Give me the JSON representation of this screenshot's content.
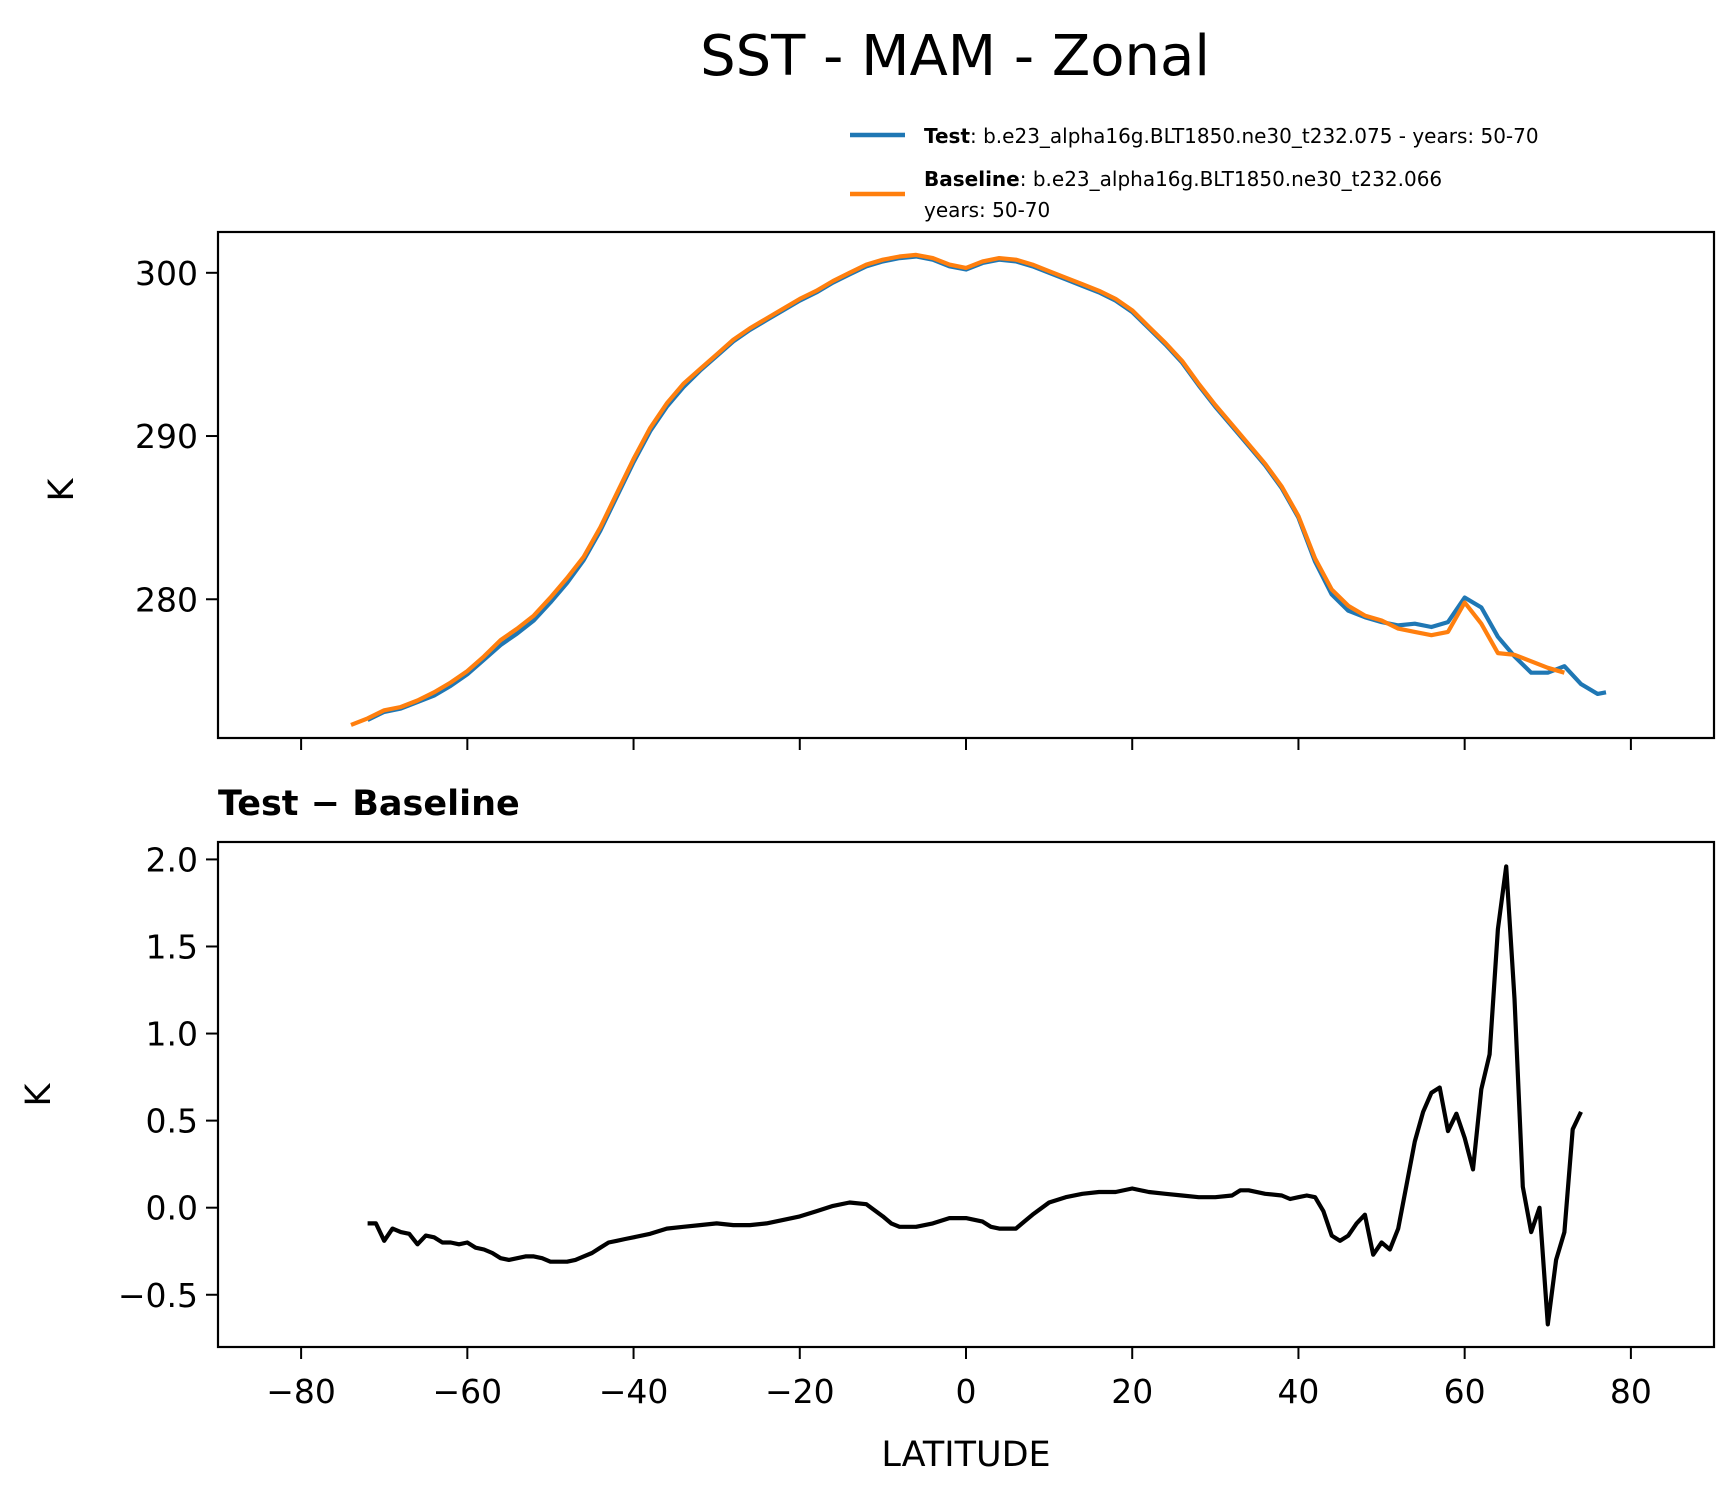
{
  "figure": {
    "title": "SST - MAM - Zonal"
  },
  "chart_data": [
    {
      "type": "line",
      "ylabel": "K",
      "xlabel": "",
      "xlim": [
        -90,
        90
      ],
      "ylim": [
        271.5,
        302.5
      ],
      "xticks": [
        -80,
        -60,
        -40,
        -20,
        0,
        20,
        40,
        60,
        80
      ],
      "yticks": [
        280,
        290,
        300
      ],
      "ytick_labels": [
        "280",
        "290",
        "300"
      ],
      "legend": {
        "placement": "above-right",
        "entries": [
          {
            "series": "test",
            "bold": "Test",
            "text": ": b.e23_alpha16g.BLT1850.ne30_t232.075 - years: 50-70",
            "text2": ""
          },
          {
            "series": "baseline",
            "bold": "Baseline",
            "text": ": b.e23_alpha16g.BLT1850.ne30_t232.066",
            "text2": "years: 50-70"
          }
        ]
      },
      "series": [
        {
          "key": "test",
          "name": "Test",
          "color": "#1f77b4",
          "points": [
            [
              -72,
              272.6
            ],
            [
              -70,
              273.1
            ],
            [
              -68,
              273.3
            ],
            [
              -66,
              273.7
            ],
            [
              -64,
              274.1
            ],
            [
              -62,
              274.7
            ],
            [
              -60,
              275.4
            ],
            [
              -58,
              276.3
            ],
            [
              -56,
              277.2
            ],
            [
              -54,
              277.9
            ],
            [
              -52,
              278.7
            ],
            [
              -50,
              279.8
            ],
            [
              -48,
              281.0
            ],
            [
              -46,
              282.4
            ],
            [
              -44,
              284.2
            ],
            [
              -42,
              286.3
            ],
            [
              -40,
              288.4
            ],
            [
              -38,
              290.3
            ],
            [
              -36,
              291.8
            ],
            [
              -34,
              293.0
            ],
            [
              -32,
              294.0
            ],
            [
              -30,
              294.9
            ],
            [
              -28,
              295.8
            ],
            [
              -26,
              296.5
            ],
            [
              -24,
              297.1
            ],
            [
              -22,
              297.7
            ],
            [
              -20,
              298.3
            ],
            [
              -18,
              298.8
            ],
            [
              -16,
              299.4
            ],
            [
              -14,
              299.9
            ],
            [
              -12,
              300.4
            ],
            [
              -10,
              300.7
            ],
            [
              -8,
              300.9
            ],
            [
              -6,
              301.0
            ],
            [
              -4,
              300.8
            ],
            [
              -2,
              300.4
            ],
            [
              0,
              300.2
            ],
            [
              2,
              300.6
            ],
            [
              4,
              300.8
            ],
            [
              6,
              300.7
            ],
            [
              8,
              300.4
            ],
            [
              10,
              300.0
            ],
            [
              12,
              299.6
            ],
            [
              14,
              299.2
            ],
            [
              16,
              298.8
            ],
            [
              18,
              298.3
            ],
            [
              20,
              297.6
            ],
            [
              22,
              296.6
            ],
            [
              24,
              295.6
            ],
            [
              26,
              294.5
            ],
            [
              28,
              293.1
            ],
            [
              30,
              291.8
            ],
            [
              32,
              290.6
            ],
            [
              34,
              289.4
            ],
            [
              36,
              288.2
            ],
            [
              38,
              286.8
            ],
            [
              40,
              285.0
            ],
            [
              42,
              282.3
            ],
            [
              44,
              280.3
            ],
            [
              46,
              279.3
            ],
            [
              48,
              278.9
            ],
            [
              50,
              278.6
            ],
            [
              52,
              278.4
            ],
            [
              54,
              278.5
            ],
            [
              56,
              278.3
            ],
            [
              58,
              278.6
            ],
            [
              60,
              280.1
            ],
            [
              62,
              279.5
            ],
            [
              64,
              277.7
            ],
            [
              66,
              276.5
            ],
            [
              68,
              275.5
            ],
            [
              70,
              275.5
            ],
            [
              72,
              275.9
            ],
            [
              74,
              274.8
            ],
            [
              76,
              274.2
            ],
            [
              77,
              274.3
            ]
          ]
        },
        {
          "key": "baseline",
          "name": "Baseline",
          "color": "#ff7f0e",
          "points": [
            [
              -74,
              272.3
            ],
            [
              -72,
              272.7
            ],
            [
              -70,
              273.2
            ],
            [
              -68,
              273.4
            ],
            [
              -66,
              273.8
            ],
            [
              -64,
              274.3
            ],
            [
              -62,
              274.9
            ],
            [
              -60,
              275.6
            ],
            [
              -58,
              276.5
            ],
            [
              -56,
              277.5
            ],
            [
              -54,
              278.2
            ],
            [
              -52,
              279.0
            ],
            [
              -50,
              280.1
            ],
            [
              -48,
              281.3
            ],
            [
              -46,
              282.6
            ],
            [
              -44,
              284.4
            ],
            [
              -42,
              286.5
            ],
            [
              -40,
              288.6
            ],
            [
              -38,
              290.5
            ],
            [
              -36,
              292.0
            ],
            [
              -34,
              293.2
            ],
            [
              -32,
              294.1
            ],
            [
              -30,
              295.0
            ],
            [
              -28,
              295.9
            ],
            [
              -26,
              296.6
            ],
            [
              -24,
              297.2
            ],
            [
              -22,
              297.8
            ],
            [
              -20,
              298.4
            ],
            [
              -18,
              298.9
            ],
            [
              -16,
              299.5
            ],
            [
              -14,
              300.0
            ],
            [
              -12,
              300.5
            ],
            [
              -10,
              300.8
            ],
            [
              -8,
              301.0
            ],
            [
              -6,
              301.1
            ],
            [
              -4,
              300.9
            ],
            [
              -2,
              300.5
            ],
            [
              0,
              300.3
            ],
            [
              2,
              300.7
            ],
            [
              4,
              300.9
            ],
            [
              6,
              300.8
            ],
            [
              8,
              300.5
            ],
            [
              10,
              300.1
            ],
            [
              12,
              299.7
            ],
            [
              14,
              299.3
            ],
            [
              16,
              298.9
            ],
            [
              18,
              298.4
            ],
            [
              20,
              297.7
            ],
            [
              22,
              296.7
            ],
            [
              24,
              295.7
            ],
            [
              26,
              294.6
            ],
            [
              28,
              293.2
            ],
            [
              30,
              291.9
            ],
            [
              32,
              290.7
            ],
            [
              34,
              289.5
            ],
            [
              36,
              288.3
            ],
            [
              38,
              286.9
            ],
            [
              40,
              285.1
            ],
            [
              42,
              282.5
            ],
            [
              44,
              280.6
            ],
            [
              46,
              279.6
            ],
            [
              48,
              279.0
            ],
            [
              50,
              278.7
            ],
            [
              52,
              278.2
            ],
            [
              54,
              278.0
            ],
            [
              56,
              277.8
            ],
            [
              58,
              278.0
            ],
            [
              60,
              279.8
            ],
            [
              62,
              278.5
            ],
            [
              64,
              276.7
            ],
            [
              66,
              276.6
            ],
            [
              68,
              276.2
            ],
            [
              70,
              275.8
            ],
            [
              72,
              275.5
            ]
          ]
        }
      ]
    },
    {
      "type": "line",
      "title": "Test − Baseline",
      "ylabel": "K",
      "xlabel": "LATITUDE",
      "xlim": [
        -90,
        90
      ],
      "ylim": [
        -0.8,
        2.1
      ],
      "xticks": [
        -80,
        -60,
        -40,
        -20,
        0,
        20,
        40,
        60,
        80
      ],
      "xtick_labels": [
        "−80",
        "−60",
        "−40",
        "−20",
        "0",
        "20",
        "40",
        "60",
        "80"
      ],
      "yticks": [
        -0.5,
        0.0,
        0.5,
        1.0,
        1.5,
        2.0
      ],
      "ytick_labels": [
        "−0.5",
        "0.0",
        "0.5",
        "1.0",
        "1.5",
        "2.0"
      ],
      "series": [
        {
          "key": "diff",
          "name": "Test − Baseline",
          "color": "#000000",
          "points": [
            [
              -72,
              -0.09
            ],
            [
              -71,
              -0.09
            ],
            [
              -70,
              -0.19
            ],
            [
              -69,
              -0.12
            ],
            [
              -68,
              -0.14
            ],
            [
              -67,
              -0.15
            ],
            [
              -66,
              -0.21
            ],
            [
              -65,
              -0.16
            ],
            [
              -64,
              -0.17
            ],
            [
              -63,
              -0.2
            ],
            [
              -62,
              -0.2
            ],
            [
              -61,
              -0.21
            ],
            [
              -60,
              -0.2
            ],
            [
              -59,
              -0.23
            ],
            [
              -58,
              -0.24
            ],
            [
              -57,
              -0.26
            ],
            [
              -56,
              -0.29
            ],
            [
              -55,
              -0.3
            ],
            [
              -54,
              -0.29
            ],
            [
              -53,
              -0.28
            ],
            [
              -52,
              -0.28
            ],
            [
              -51,
              -0.29
            ],
            [
              -50,
              -0.31
            ],
            [
              -49,
              -0.31
            ],
            [
              -48,
              -0.31
            ],
            [
              -47,
              -0.3
            ],
            [
              -46,
              -0.28
            ],
            [
              -45,
              -0.26
            ],
            [
              -44,
              -0.23
            ],
            [
              -43,
              -0.2
            ],
            [
              -42,
              -0.19
            ],
            [
              -41,
              -0.18
            ],
            [
              -40,
              -0.17
            ],
            [
              -38,
              -0.15
            ],
            [
              -36,
              -0.12
            ],
            [
              -34,
              -0.11
            ],
            [
              -32,
              -0.1
            ],
            [
              -30,
              -0.09
            ],
            [
              -28,
              -0.1
            ],
            [
              -26,
              -0.1
            ],
            [
              -24,
              -0.09
            ],
            [
              -22,
              -0.07
            ],
            [
              -20,
              -0.05
            ],
            [
              -18,
              -0.02
            ],
            [
              -16,
              0.01
            ],
            [
              -14,
              0.03
            ],
            [
              -12,
              0.02
            ],
            [
              -10,
              -0.05
            ],
            [
              -9,
              -0.09
            ],
            [
              -8,
              -0.11
            ],
            [
              -6,
              -0.11
            ],
            [
              -4,
              -0.09
            ],
            [
              -2,
              -0.06
            ],
            [
              0,
              -0.06
            ],
            [
              2,
              -0.08
            ],
            [
              3,
              -0.11
            ],
            [
              4,
              -0.12
            ],
            [
              6,
              -0.12
            ],
            [
              7,
              -0.08
            ],
            [
              8,
              -0.04
            ],
            [
              10,
              0.03
            ],
            [
              12,
              0.06
            ],
            [
              14,
              0.08
            ],
            [
              16,
              0.09
            ],
            [
              18,
              0.09
            ],
            [
              20,
              0.11
            ],
            [
              22,
              0.09
            ],
            [
              24,
              0.08
            ],
            [
              26,
              0.07
            ],
            [
              28,
              0.06
            ],
            [
              30,
              0.06
            ],
            [
              32,
              0.07
            ],
            [
              33,
              0.1
            ],
            [
              34,
              0.1
            ],
            [
              36,
              0.08
            ],
            [
              38,
              0.07
            ],
            [
              39,
              0.05
            ],
            [
              40,
              0.06
            ],
            [
              41,
              0.07
            ],
            [
              42,
              0.06
            ],
            [
              43,
              -0.02
            ],
            [
              44,
              -0.16
            ],
            [
              45,
              -0.19
            ],
            [
              46,
              -0.16
            ],
            [
              47,
              -0.09
            ],
            [
              48,
              -0.04
            ],
            [
              49,
              -0.27
            ],
            [
              50,
              -0.2
            ],
            [
              51,
              -0.24
            ],
            [
              52,
              -0.12
            ],
            [
              53,
              0.13
            ],
            [
              54,
              0.38
            ],
            [
              55,
              0.55
            ],
            [
              56,
              0.66
            ],
            [
              57,
              0.69
            ],
            [
              58,
              0.44
            ],
            [
              59,
              0.54
            ],
            [
              60,
              0.4
            ],
            [
              61,
              0.22
            ],
            [
              62,
              0.68
            ],
            [
              63,
              0.88
            ],
            [
              64,
              1.6
            ],
            [
              65,
              1.96
            ],
            [
              66,
              1.2
            ],
            [
              67,
              0.12
            ],
            [
              68,
              -0.14
            ],
            [
              69,
              0.0
            ],
            [
              70,
              -0.67
            ],
            [
              71,
              -0.3
            ],
            [
              72,
              -0.14
            ],
            [
              73,
              0.45
            ],
            [
              74,
              0.55
            ]
          ]
        }
      ]
    }
  ]
}
